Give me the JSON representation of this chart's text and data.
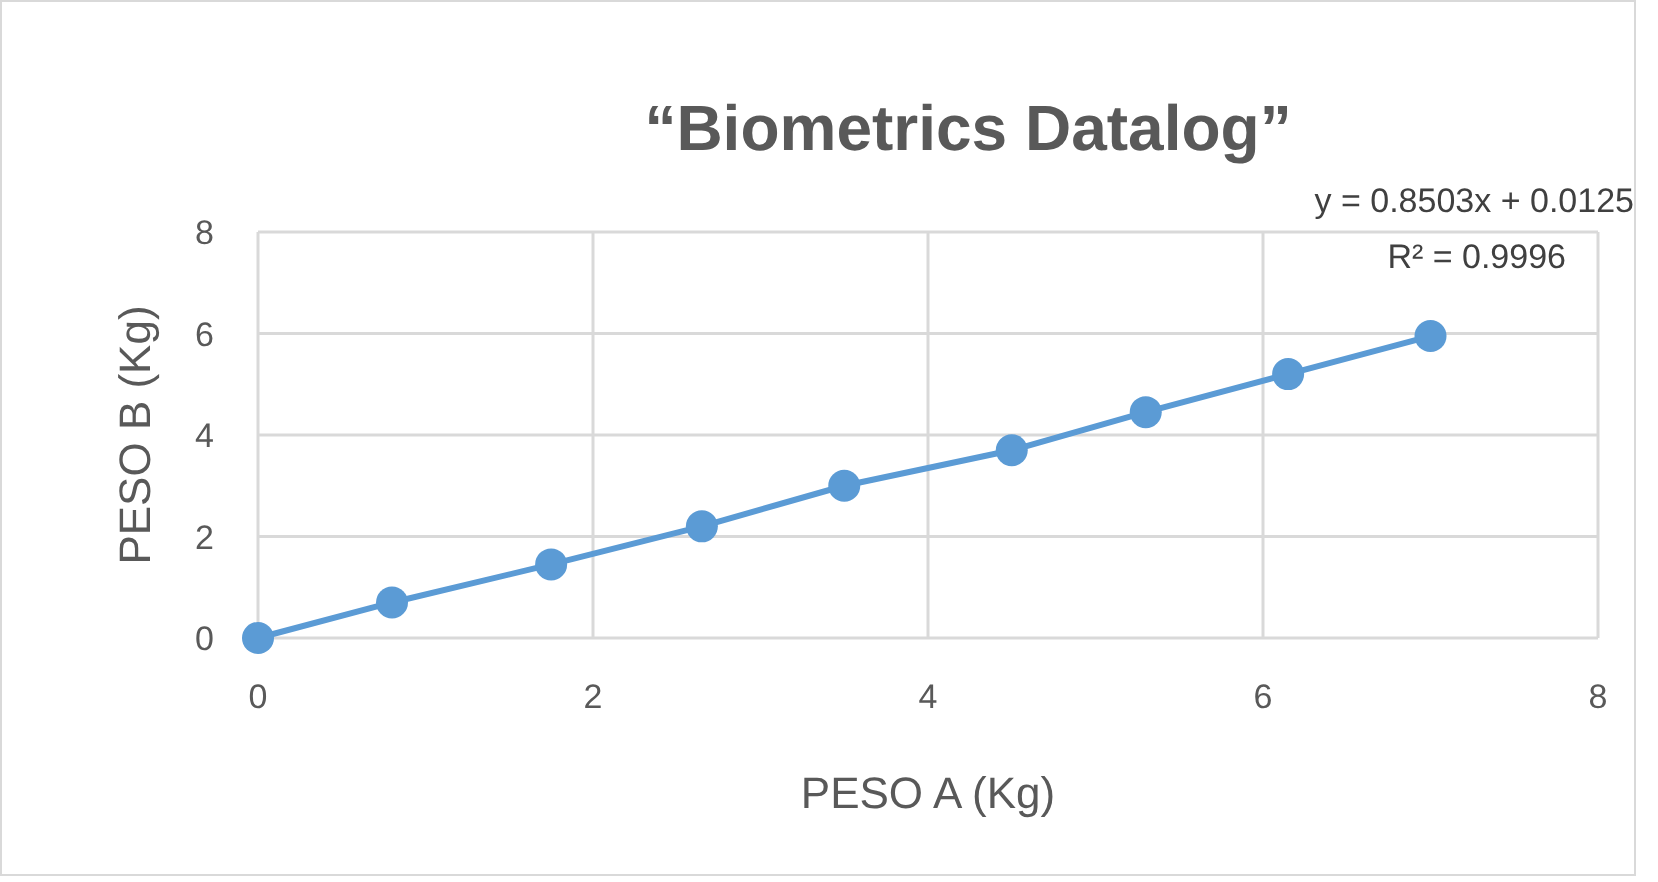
{
  "chart_data": {
    "type": "line",
    "title": "“Biometrics Datalog”",
    "xlabel": "PESO A (Kg)",
    "ylabel": "PESO B (Kg)",
    "x": [
      0,
      0.8,
      1.75,
      2.65,
      3.5,
      4.5,
      5.3,
      6.15,
      7.0
    ],
    "series": [
      {
        "color": "#5b9bd5",
        "values": [
          0,
          0.7,
          1.45,
          2.2,
          3.0,
          3.7,
          4.45,
          5.2,
          5.95
        ]
      }
    ],
    "xlim": [
      0,
      8
    ],
    "xticks": [
      0,
      2,
      4,
      6,
      8
    ],
    "ylim": [
      0,
      8
    ],
    "yticks": [
      0,
      2,
      4,
      6,
      8
    ],
    "grid": true,
    "marker": "circle",
    "line_style": "solid",
    "annotations": [
      "y = 0.8503x + 0.0125",
      "R² = 0.9996"
    ]
  }
}
